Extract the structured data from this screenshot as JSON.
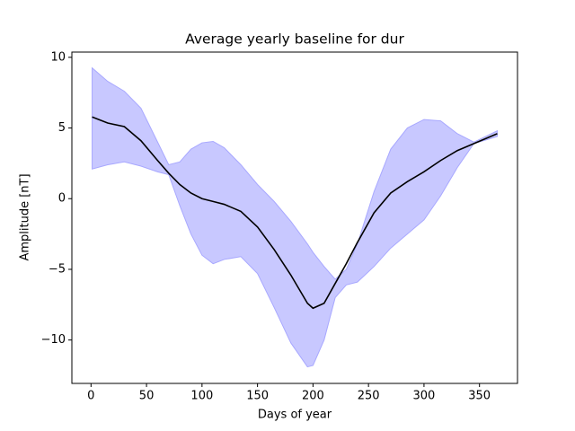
{
  "chart_data": {
    "type": "band-line",
    "title": "Average yearly baseline for dur",
    "xlabel": "Days of year",
    "ylabel": "Amplitude [nT]",
    "x": [
      1,
      15,
      30,
      45,
      60,
      70,
      80,
      90,
      100,
      110,
      120,
      135,
      150,
      165,
      180,
      195,
      200,
      210,
      220,
      230,
      240,
      255,
      270,
      285,
      300,
      315,
      330,
      345,
      366
    ],
    "values": [
      5.78,
      5.35,
      5.1,
      4.1,
      2.7,
      1.8,
      1.0,
      0.4,
      0.0,
      -0.2,
      -0.4,
      -0.9,
      -2.0,
      -3.6,
      -5.4,
      -7.4,
      -7.75,
      -7.4,
      -6.0,
      -4.6,
      -3.1,
      -1.0,
      0.4,
      1.2,
      1.9,
      2.7,
      3.4,
      3.9,
      4.6
    ],
    "color": "#000000",
    "band": {
      "upper": [
        9.25,
        8.3,
        7.6,
        6.4,
        4.0,
        2.4,
        2.6,
        3.5,
        3.95,
        4.05,
        3.6,
        2.4,
        1.0,
        -0.2,
        -1.6,
        -3.2,
        -3.8,
        -4.8,
        -5.7,
        -5.0,
        -3.2,
        0.5,
        3.5,
        5.0,
        5.6,
        5.5,
        4.6,
        4.0,
        4.8
      ],
      "lower": [
        2.1,
        2.4,
        2.6,
        2.3,
        1.9,
        1.7,
        -0.5,
        -2.5,
        -4.0,
        -4.6,
        -4.3,
        -4.1,
        -5.3,
        -7.7,
        -10.2,
        -11.9,
        -11.8,
        -10.0,
        -7.0,
        -6.1,
        -5.9,
        -4.8,
        -3.5,
        -2.5,
        -1.5,
        0.2,
        2.2,
        3.9,
        4.4
      ],
      "color": "#c8c8ff",
      "edge": "#a8a8ff"
    },
    "xlim": [
      -17.25,
      384.25
    ],
    "xticks": [
      0,
      50,
      100,
      150,
      200,
      250,
      300,
      350
    ],
    "ylim": [
      -13.07,
      10.37
    ],
    "yticks": [
      {
        "value": -10,
        "label": "−10"
      },
      {
        "value": -5,
        "label": "−5"
      },
      0,
      5,
      10
    ],
    "grid": false
  }
}
